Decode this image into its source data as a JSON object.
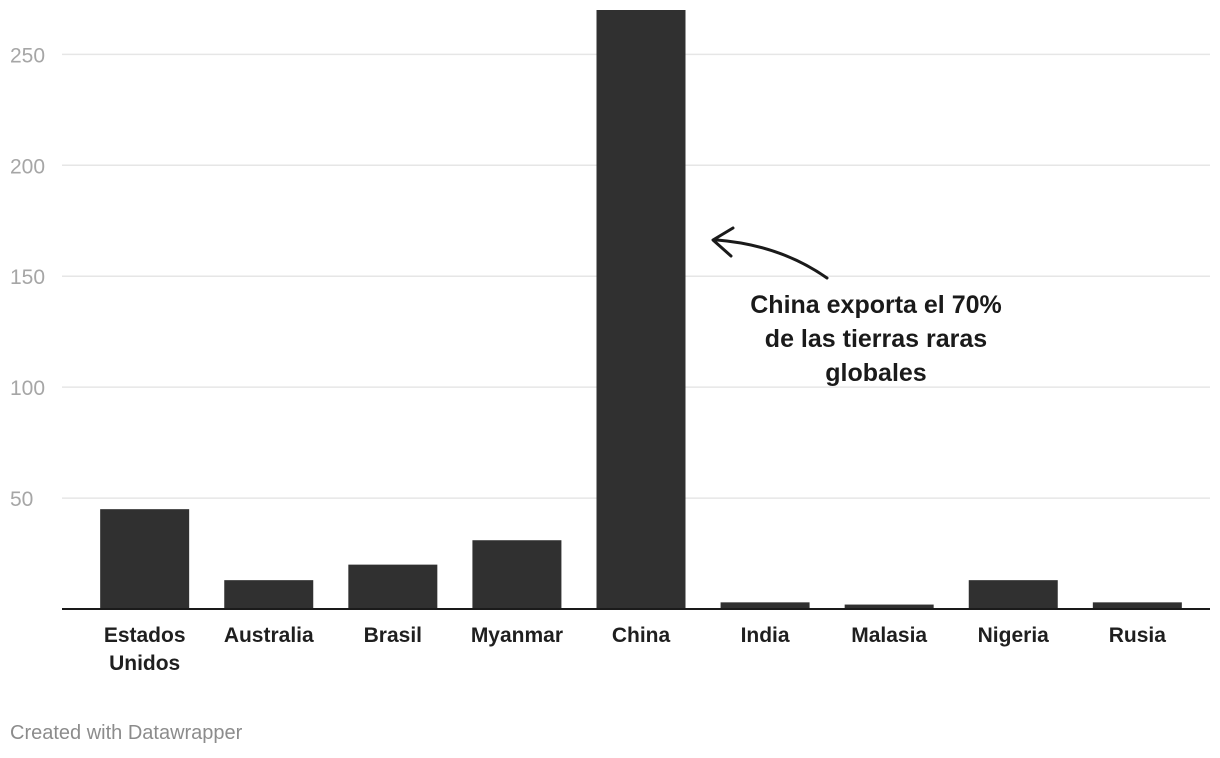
{
  "chart_data": {
    "type": "bar",
    "categories": [
      "Estados Unidos",
      "Australia",
      "Brasil",
      "Myanmar",
      "China",
      "India",
      "Malasia",
      "Nigeria",
      "Rusia"
    ],
    "category_lines": [
      [
        "Estados",
        "Unidos"
      ],
      [
        "Australia"
      ],
      [
        "Brasil"
      ],
      [
        "Myanmar"
      ],
      [
        "China"
      ],
      [
        "India"
      ],
      [
        "Malasia"
      ],
      [
        "Nigeria"
      ],
      [
        "Rusia"
      ]
    ],
    "values": [
      45,
      13,
      20,
      31,
      270,
      3,
      2,
      13,
      3
    ],
    "ylim": [
      0,
      270
    ],
    "yticks": [
      50,
      100,
      150,
      200,
      250
    ],
    "grid": true,
    "bar_color": "#303030",
    "grid_color": "#e6e6e6",
    "annotation": {
      "lines": [
        "China exporta el 70%",
        "de las tierras raras",
        "globales"
      ],
      "points_to": "China"
    }
  },
  "footer": {
    "credit": "Created with Datawrapper"
  }
}
